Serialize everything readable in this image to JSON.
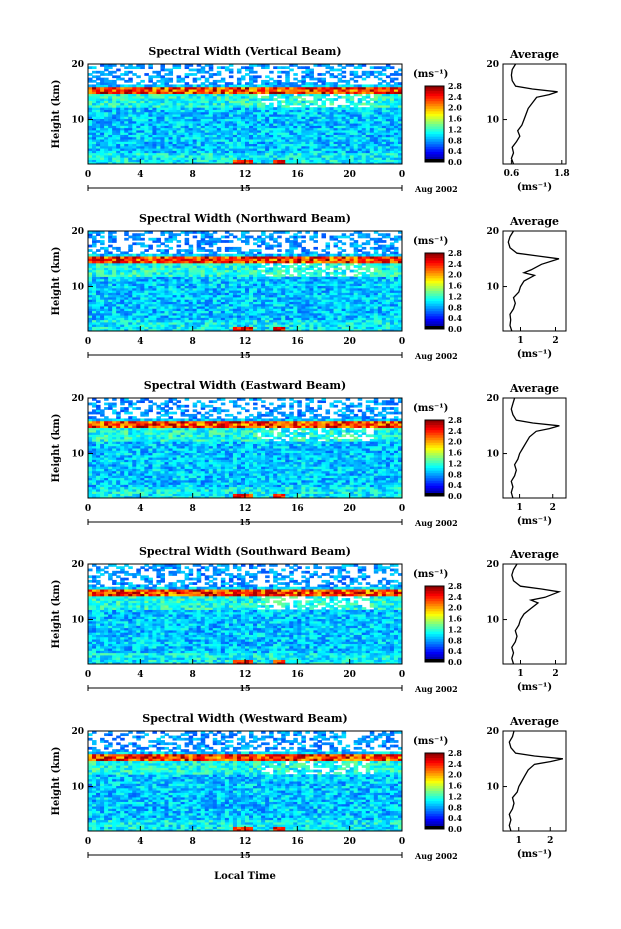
{
  "figure": {
    "xlabel_bottom": "Local Time",
    "date_suffix": "Aug 2002"
  },
  "chart_data": [
    {
      "type": "heatmap",
      "title": "Spectral Width (Vertical Beam)",
      "ylabel": "Height (km)",
      "xlabel": "Local Time",
      "x_ticks": [
        "0",
        "4",
        "8",
        "12",
        "16",
        "20",
        "0"
      ],
      "y_ticks": [
        "10",
        "20"
      ],
      "xlim": [
        0,
        24
      ],
      "ylim": [
        2,
        20
      ],
      "day_label": "15",
      "date_label": "Aug 2002",
      "colorbar": {
        "unit": "(ms⁻¹)",
        "ticks": [
          "2.8",
          "2.4",
          "2.0",
          "1.6",
          "1.2",
          "0.8",
          "0.4",
          "0.0"
        ],
        "range": [
          0,
          2.8
        ]
      },
      "tropopause_km": 15.2,
      "average": {
        "title": "Average",
        "xlabel": "(ms⁻¹)",
        "x_ticks": [
          "0.6",
          "1.8"
        ],
        "xlim": [
          0.4,
          1.9
        ],
        "heights": [
          2,
          3,
          4,
          5,
          6,
          7,
          8,
          9,
          10,
          11,
          12,
          13,
          14,
          14.5,
          15,
          15.5,
          16,
          17,
          18,
          19,
          20
        ],
        "values": [
          0.65,
          0.6,
          0.65,
          0.62,
          0.72,
          0.8,
          0.75,
          0.85,
          0.9,
          0.95,
          1.0,
          1.1,
          1.2,
          1.5,
          1.7,
          1.1,
          0.7,
          0.62,
          0.6,
          0.62,
          0.7
        ]
      }
    },
    {
      "type": "heatmap",
      "title": "Spectral Width (Northward Beam)",
      "ylabel": "Height (km)",
      "xlabel": "Local Time",
      "x_ticks": [
        "0",
        "4",
        "8",
        "12",
        "16",
        "20",
        "0"
      ],
      "y_ticks": [
        "10",
        "20"
      ],
      "xlim": [
        0,
        24
      ],
      "ylim": [
        2,
        20
      ],
      "day_label": "15",
      "date_label": "Aug 2002",
      "colorbar": {
        "unit": "(ms⁻¹)",
        "ticks": [
          "2.8",
          "2.4",
          "2.0",
          "1.6",
          "1.2",
          "0.8",
          "0.4",
          "0.0"
        ],
        "range": [
          0,
          2.8
        ]
      },
      "tropopause_km": 15.0,
      "average": {
        "title": "Average",
        "xlabel": "(ms⁻¹)",
        "x_ticks": [
          "1",
          "2"
        ],
        "xlim": [
          0.5,
          2.3
        ],
        "heights": [
          2,
          3,
          4,
          5,
          6,
          7,
          8,
          9,
          10,
          11,
          12,
          12.5,
          13,
          14,
          15,
          15.5,
          16,
          17,
          18,
          19,
          20
        ],
        "values": [
          0.75,
          0.7,
          0.72,
          0.7,
          0.8,
          0.85,
          0.8,
          0.95,
          1.0,
          1.1,
          1.4,
          1.1,
          1.3,
          1.6,
          2.1,
          1.5,
          0.9,
          0.7,
          0.65,
          0.7,
          0.8
        ]
      }
    },
    {
      "type": "heatmap",
      "title": "Spectral Width (Eastward Beam)",
      "ylabel": "Height (km)",
      "xlabel": "Local Time",
      "x_ticks": [
        "0",
        "4",
        "8",
        "12",
        "16",
        "20",
        "0"
      ],
      "y_ticks": [
        "10",
        "20"
      ],
      "xlim": [
        0,
        24
      ],
      "ylim": [
        2,
        20
      ],
      "day_label": "15",
      "date_label": "Aug 2002",
      "colorbar": {
        "unit": "(ms⁻¹)",
        "ticks": [
          "2.8",
          "2.4",
          "2.0",
          "1.6",
          "1.2",
          "0.8",
          "0.4",
          "0.0"
        ],
        "range": [
          0,
          2.8
        ]
      },
      "tropopause_km": 15.3,
      "average": {
        "title": "Average",
        "xlabel": "(ms⁻¹)",
        "x_ticks": [
          "1",
          "2"
        ],
        "xlim": [
          0.5,
          2.4
        ],
        "heights": [
          2,
          3,
          4,
          5,
          6,
          7,
          8,
          9,
          10,
          11,
          12,
          13,
          14,
          14.5,
          15,
          15.5,
          16,
          17,
          18,
          19,
          20
        ],
        "values": [
          0.8,
          0.75,
          0.8,
          0.75,
          0.85,
          0.9,
          0.85,
          0.95,
          1.0,
          1.1,
          1.2,
          1.3,
          1.5,
          1.9,
          2.2,
          1.4,
          0.9,
          0.8,
          0.75,
          0.8,
          0.85
        ]
      }
    },
    {
      "type": "heatmap",
      "title": "Spectral Width (Southward Beam)",
      "ylabel": "Height (km)",
      "xlabel": "Local Time",
      "x_ticks": [
        "0",
        "4",
        "8",
        "12",
        "16",
        "20",
        "0"
      ],
      "y_ticks": [
        "10",
        "20"
      ],
      "xlim": [
        0,
        24
      ],
      "ylim": [
        2,
        20
      ],
      "day_label": "15",
      "date_label": "Aug 2002",
      "colorbar": {
        "unit": "(ms⁻¹)",
        "ticks": [
          "2.8",
          "2.4",
          "2.0",
          "1.6",
          "1.2",
          "0.8",
          "0.4",
          "0.0"
        ],
        "range": [
          0,
          2.8
        ]
      },
      "tropopause_km": 15.0,
      "average": {
        "title": "Average",
        "xlabel": "(ms⁻¹)",
        "x_ticks": [
          "1",
          "2"
        ],
        "xlim": [
          0.5,
          2.3
        ],
        "heights": [
          2,
          3,
          4,
          5,
          6,
          7,
          8,
          9,
          10,
          11,
          12,
          13,
          13.5,
          14,
          15,
          15.5,
          16,
          17,
          18,
          19,
          20
        ],
        "values": [
          0.8,
          0.75,
          0.8,
          0.75,
          0.85,
          0.9,
          0.85,
          0.95,
          1.0,
          1.1,
          1.3,
          1.5,
          1.3,
          1.7,
          2.1,
          1.6,
          1.0,
          0.8,
          0.75,
          0.8,
          0.9
        ]
      }
    },
    {
      "type": "heatmap",
      "title": "Spectral Width (Westward Beam)",
      "ylabel": "Height (km)",
      "xlabel": "Local Time",
      "x_ticks": [
        "0",
        "4",
        "8",
        "12",
        "16",
        "20",
        "0"
      ],
      "y_ticks": [
        "10",
        "20"
      ],
      "xlim": [
        0,
        24
      ],
      "ylim": [
        2,
        20
      ],
      "day_label": "15",
      "date_label": "Aug 2002",
      "colorbar": {
        "unit": "(ms⁻¹)",
        "ticks": [
          "2.8",
          "2.4",
          "2.0",
          "1.6",
          "1.2",
          "0.8",
          "0.4",
          "0.0"
        ],
        "range": [
          0,
          2.8
        ]
      },
      "tropopause_km": 15.2,
      "average": {
        "title": "Average",
        "xlabel": "(ms⁻¹)",
        "x_ticks": [
          "1",
          "2"
        ],
        "xlim": [
          0.5,
          2.5
        ],
        "heights": [
          2,
          3,
          4,
          5,
          6,
          7,
          8,
          9,
          10,
          11,
          12,
          13,
          14,
          14.5,
          15,
          15.5,
          16,
          17,
          18,
          19,
          20
        ],
        "values": [
          0.75,
          0.7,
          0.75,
          0.7,
          0.8,
          0.85,
          0.8,
          0.95,
          1.0,
          1.1,
          1.2,
          1.3,
          1.5,
          2.0,
          2.4,
          1.5,
          0.9,
          0.75,
          0.7,
          0.8,
          0.85
        ]
      }
    }
  ]
}
